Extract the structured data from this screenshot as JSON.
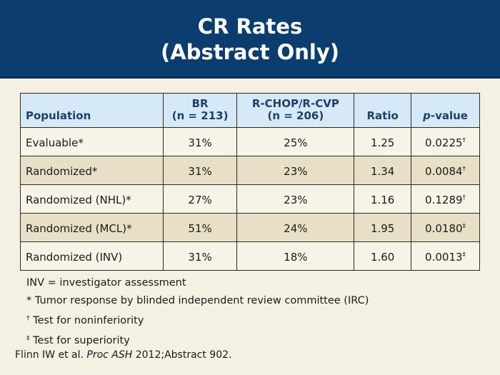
{
  "title": {
    "line1": "CR Rates",
    "line2": "(Abstract Only)"
  },
  "table": {
    "headers": {
      "population": "Population",
      "br_name": "BR",
      "br_n": "(n = 213)",
      "rchop_name": "R-CHOP/R-CVP",
      "rchop_n": "(n = 206)",
      "ratio": "Ratio",
      "pvalue_p": "p",
      "pvalue_rest": "-value"
    },
    "rows": [
      {
        "population": "Evaluable*",
        "br": "31%",
        "rchop": "25%",
        "ratio": "1.25",
        "pvalue": "0.0225",
        "mark": "†"
      },
      {
        "population": "Randomized*",
        "br": "31%",
        "rchop": "23%",
        "ratio": "1.34",
        "pvalue": "0.0084",
        "mark": "†"
      },
      {
        "population": "Randomized (NHL)*",
        "br": "27%",
        "rchop": "23%",
        "ratio": "1.16",
        "pvalue": "0.1289",
        "mark": "†"
      },
      {
        "population": "Randomized (MCL)*",
        "br": "51%",
        "rchop": "24%",
        "ratio": "1.95",
        "pvalue": "0.0180",
        "mark": "‡"
      },
      {
        "population": "Randomized (INV)",
        "br": "31%",
        "rchop": "18%",
        "ratio": "1.60",
        "pvalue": "0.0013",
        "mark": "‡"
      }
    ]
  },
  "footnotes": {
    "inv": "INV = investigator assessment",
    "star_symbol": "*",
    "star_text": " Tumor response by blinded independent review committee (IRC)",
    "dagger_symbol": "†",
    "dagger_text": " Test for noninferiority",
    "ddagger_symbol": "‡",
    "ddagger_text": " Test for superiority"
  },
  "citation": {
    "author": "Flinn IW et al. ",
    "journal": "Proc ASH",
    "rest": " 2012;Abstract 902."
  },
  "colors": {
    "header_bg": "#0b3d6e",
    "table_header_bg": "#d6e9f6",
    "row_light": "#f6f4e6",
    "row_dark": "#e8e0c6",
    "page_bg": "#f4f1e3"
  }
}
